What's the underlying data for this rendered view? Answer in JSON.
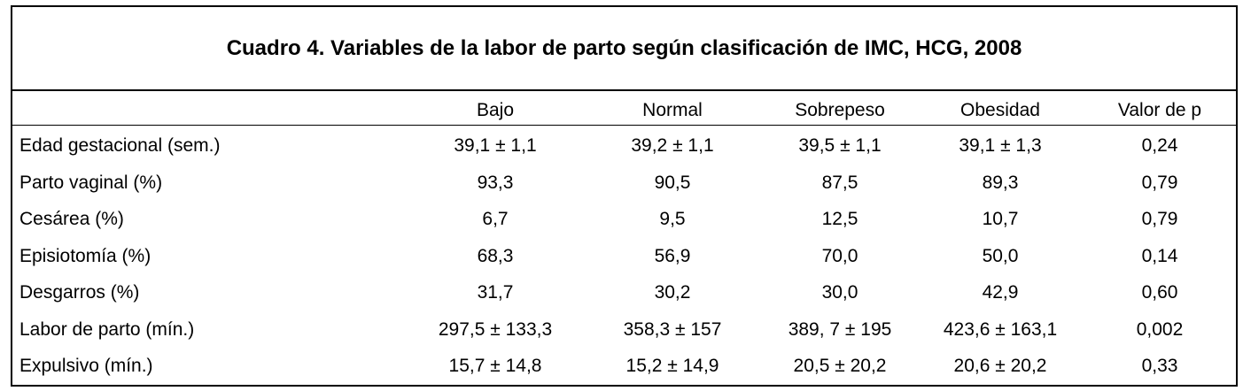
{
  "header": {
    "title": "Cuadro 4. Variables de la labor de parto según clasificación de IMC, HCG, 2008"
  },
  "table": {
    "columns": [
      "Bajo",
      "Normal",
      "Sobrepeso",
      "Obesidad",
      "Valor de p"
    ],
    "rows": [
      [
        "Edad gestacional (sem.)",
        "39,1 ± 1,1",
        "39,2 ± 1,1",
        "39,5 ± 1,1",
        "39,1 ± 1,3",
        "0,24"
      ],
      [
        "Parto vaginal (%)",
        "93,3",
        "90,5",
        "87,5",
        "89,3",
        "0,79"
      ],
      [
        "Cesárea (%)",
        "6,7",
        "9,5",
        "12,5",
        "10,7",
        "0,79"
      ],
      [
        "Episiotomía (%)",
        "68,3",
        "56,9",
        "70,0",
        "50,0",
        "0,14"
      ],
      [
        "Desgarros (%)",
        "31,7",
        "30,2",
        "30,0",
        "42,9",
        "0,60"
      ],
      [
        "Labor de parto (mín.)",
        "297,5 ± 133,3",
        "358,3 ± 157",
        "389, 7 ± 195",
        "423,6 ± 163,1",
        "0,002"
      ],
      [
        "Expulsivo (mín.)",
        "15,7 ± 14,8",
        "15,2 ± 14,9",
        "20,5 ± 20,2",
        "20,6 ± 20,2",
        "0,33"
      ]
    ]
  }
}
